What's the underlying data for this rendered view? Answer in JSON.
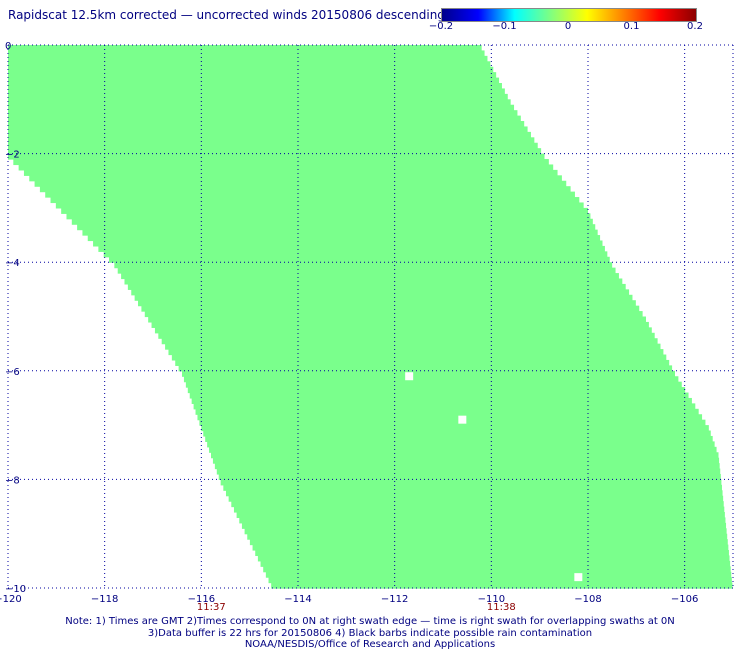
{
  "title": "Rapidscat 12.5km corrected — uncorrected winds 20150806 descending",
  "colorbar": {
    "ticks": [
      "−0.2",
      "−0.1",
      "0",
      "0.1",
      "0.2"
    ],
    "range": [
      -0.2,
      0.2
    ],
    "colors": [
      "#00008b",
      "#0000ff",
      "#00ffff",
      "#80ff80",
      "#ffff00",
      "#ff8000",
      "#ff0000",
      "#8b0000"
    ]
  },
  "chart_data": {
    "type": "heatmap",
    "title": "Rapidscat 12.5km corrected — uncorrected winds 20150806 descending",
    "xlim": [
      -120,
      -105
    ],
    "ylim": [
      -10,
      0
    ],
    "x_ticks": [
      "−120",
      "−118",
      "−116",
      "−114",
      "−112",
      "−110",
      "−108",
      "−106"
    ],
    "y_ticks": [
      "0",
      "−2",
      "−4",
      "−6",
      "−8",
      "−10"
    ],
    "grid": true,
    "fill_color": "#7aff8c",
    "value": 0,
    "swath_right_edge": [
      [
        0,
        -110.2
      ],
      [
        -1,
        -109.6
      ],
      [
        -2,
        -108.9
      ],
      [
        -3,
        -108.0
      ],
      [
        -4,
        -107.5
      ],
      [
        -5,
        -106.8
      ],
      [
        -6,
        -106.2
      ],
      [
        -7,
        -105.5
      ],
      [
        -7.5,
        -105.3
      ],
      [
        -10,
        -105.0
      ]
    ],
    "swath_left_edge": [
      [
        0,
        -120
      ],
      [
        -2,
        -120
      ],
      [
        -4,
        -117.8
      ],
      [
        -6,
        -116.4
      ],
      [
        -8,
        -115.6
      ],
      [
        -10,
        -114.5
      ]
    ],
    "missing_cells": [
      [
        -111.7,
        -6.1
      ],
      [
        -110.6,
        -6.9
      ],
      [
        -108.2,
        -9.8
      ]
    ],
    "time_labels": [
      {
        "x": -116,
        "text": "11:37"
      },
      {
        "x": -110,
        "text": "11:38"
      }
    ]
  },
  "notes": [
    "Note: 1) Times are GMT 2)Times correspond to 0N at right swath edge — time is right swath for overlapping swaths at 0N",
    "3)Data buffer is 22 hrs for 20150806 4) Black barbs indicate possible rain contamination",
    "NOAA/NESDIS/Office of Research and Applications"
  ]
}
